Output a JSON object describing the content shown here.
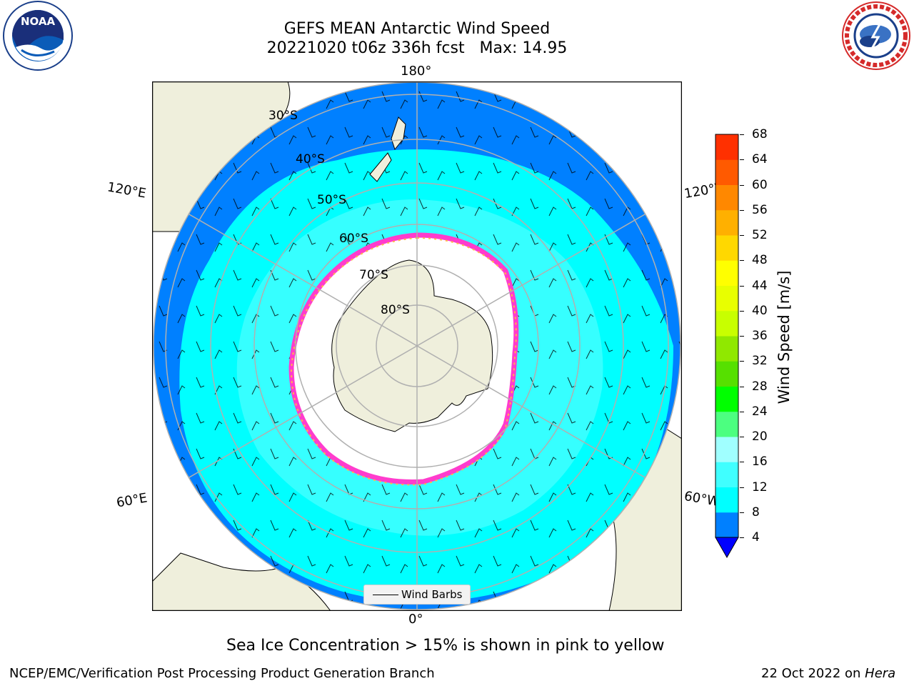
{
  "title": {
    "line1": "GEFS MEAN Antarctic Wind Speed",
    "line2": "20221020 t06z 336h fcst   Max: 14.95"
  },
  "logos": {
    "left": {
      "icon": "noaa-logo",
      "text": "NOAA"
    },
    "right": {
      "icon": "nws-logo",
      "text": "NATIONAL WEATHER SERVICE"
    }
  },
  "map": {
    "projection": "south-polar-stereographic",
    "lon_labels": {
      "top": "180°",
      "bottom": "0°",
      "upper_left": "120°E",
      "upper_right": "120°W",
      "lower_left": "60°E",
      "lower_right": "60°W"
    },
    "lat_labels": [
      "30°S",
      "40°S",
      "50°S",
      "60°S",
      "70°S",
      "80°S"
    ],
    "legend": {
      "label": "Wind Barbs"
    }
  },
  "colorbar": {
    "label": "Wind Speed [m/s]",
    "ticks": [
      "4",
      "8",
      "12",
      "16",
      "20",
      "24",
      "28",
      "32",
      "36",
      "40",
      "44",
      "48",
      "52",
      "56",
      "60",
      "64",
      "68"
    ],
    "colors": [
      "#0080ff",
      "#00ffff",
      "#40ffff",
      "#a0ffff",
      "#4cff80",
      "#00ff00",
      "#56e000",
      "#90e800",
      "#c8ff00",
      "#e8ff00",
      "#ffff00",
      "#ffd800",
      "#ffb000",
      "#ff8800",
      "#ff5a00",
      "#ff3000",
      "#ff0000"
    ],
    "under_color": "#0000ff"
  },
  "caption": "Sea Ice Concentration > 15% is shown in pink to yellow",
  "footer": {
    "left": "NCEP/EMC/Verification Post Processing Product Generation Branch",
    "right_date": "22 Oct 2022 on",
    "right_host": "Hera"
  }
}
